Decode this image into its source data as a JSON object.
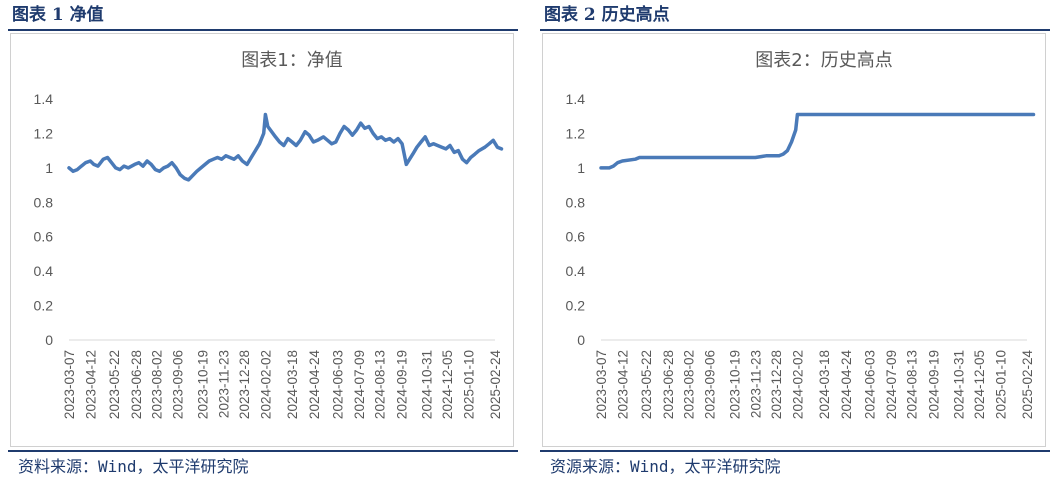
{
  "figures": [
    {
      "heading": "图表 1 净值",
      "source": "资料来源：Wind，太平洋研究院",
      "chart_data": {
        "type": "line",
        "title": "图表1：净值",
        "ylim": [
          0,
          1.4
        ],
        "yticks": [
          "0",
          "0.2",
          "0.4",
          "0.6",
          "0.8",
          "1",
          "1.2",
          "1.4"
        ],
        "xticks": [
          "2023-03-07",
          "2023-04-12",
          "2023-05-22",
          "2023-06-28",
          "2023-08-02",
          "2023-09-06",
          "2023-10-19",
          "2023-11-23",
          "2023-12-28",
          "2024-02-02",
          "2024-03-18",
          "2024-04-24",
          "2024-06-03",
          "2024-07-09",
          "2024-08-13",
          "2024-09-19",
          "2024-10-31",
          "2024-12-05",
          "2025-01-10",
          "2025-02-24"
        ],
        "grid": false,
        "line_color": "#4a7ab8",
        "series": [
          {
            "x": [
              "2023-03-07",
              "2023-03-14",
              "2023-03-21",
              "2023-03-28",
              "2023-04-04",
              "2023-04-12",
              "2023-04-18",
              "2023-04-25",
              "2023-05-04",
              "2023-05-11",
              "2023-05-18",
              "2023-05-25",
              "2023-06-01",
              "2023-06-08",
              "2023-06-15",
              "2023-06-26",
              "2023-07-03",
              "2023-07-10",
              "2023-07-17",
              "2023-07-24",
              "2023-07-31",
              "2023-08-07",
              "2023-08-14",
              "2023-08-21",
              "2023-08-28",
              "2023-09-04",
              "2023-09-11",
              "2023-09-18",
              "2023-09-25",
              "2023-10-09",
              "2023-10-16",
              "2023-10-23",
              "2023-10-30",
              "2023-11-06",
              "2023-11-13",
              "2023-11-20",
              "2023-11-27",
              "2023-12-04",
              "2023-12-11",
              "2023-12-18",
              "2023-12-25",
              "2024-01-02",
              "2024-01-09",
              "2024-01-16",
              "2024-01-23",
              "2024-01-30",
              "2024-02-02",
              "2024-02-06",
              "2024-02-19",
              "2024-02-26",
              "2024-03-04",
              "2024-03-11",
              "2024-03-18",
              "2024-03-25",
              "2024-04-01",
              "2024-04-09",
              "2024-04-16",
              "2024-04-23",
              "2024-04-30",
              "2024-05-10",
              "2024-05-17",
              "2024-05-24",
              "2024-05-31",
              "2024-06-07",
              "2024-06-14",
              "2024-06-21",
              "2024-06-28",
              "2024-07-05",
              "2024-07-12",
              "2024-07-19",
              "2024-07-26",
              "2024-08-02",
              "2024-08-09",
              "2024-08-16",
              "2024-08-23",
              "2024-08-30",
              "2024-09-06",
              "2024-09-13",
              "2024-09-20",
              "2024-09-27",
              "2024-10-08",
              "2024-10-15",
              "2024-10-22",
              "2024-10-29",
              "2024-11-05",
              "2024-11-12",
              "2024-11-19",
              "2024-11-26",
              "2024-12-03",
              "2024-12-10",
              "2024-12-17",
              "2024-12-24",
              "2024-12-31",
              "2025-01-07",
              "2025-01-14",
              "2025-01-21",
              "2025-01-28",
              "2025-02-07",
              "2025-02-14",
              "2025-02-21",
              "2025-02-28",
              "2025-03-07"
            ],
            "values": [
              1.0,
              0.98,
              0.99,
              1.01,
              1.03,
              1.04,
              1.02,
              1.01,
              1.05,
              1.06,
              1.03,
              1.0,
              0.99,
              1.01,
              1.0,
              1.02,
              1.03,
              1.01,
              1.04,
              1.02,
              0.99,
              0.98,
              1.0,
              1.01,
              1.03,
              1.0,
              0.96,
              0.94,
              0.93,
              0.98,
              1.0,
              1.02,
              1.04,
              1.05,
              1.06,
              1.05,
              1.07,
              1.06,
              1.05,
              1.07,
              1.04,
              1.02,
              1.06,
              1.1,
              1.14,
              1.2,
              1.31,
              1.24,
              1.18,
              1.15,
              1.13,
              1.17,
              1.15,
              1.13,
              1.16,
              1.21,
              1.19,
              1.15,
              1.16,
              1.18,
              1.16,
              1.14,
              1.15,
              1.2,
              1.24,
              1.22,
              1.19,
              1.22,
              1.26,
              1.23,
              1.24,
              1.2,
              1.17,
              1.18,
              1.16,
              1.17,
              1.15,
              1.17,
              1.14,
              1.02,
              1.08,
              1.12,
              1.15,
              1.18,
              1.13,
              1.14,
              1.13,
              1.12,
              1.11,
              1.13,
              1.09,
              1.1,
              1.05,
              1.03,
              1.06,
              1.08,
              1.1,
              1.12,
              1.14,
              1.16,
              1.12,
              1.11
            ]
          }
        ]
      }
    },
    {
      "heading": "图表 2 历史高点",
      "source": "资源来源：Wind，太平洋研究院",
      "chart_data": {
        "type": "line",
        "title": "图表2：历史高点",
        "ylim": [
          0,
          1.4
        ],
        "yticks": [
          "0",
          "0.2",
          "0.4",
          "0.6",
          "0.8",
          "1",
          "1.2",
          "1.4"
        ],
        "xticks": [
          "2023-03-07",
          "2023-04-12",
          "2023-05-22",
          "2023-06-28",
          "2023-08-02",
          "2023-09-06",
          "2023-10-19",
          "2023-11-23",
          "2023-12-28",
          "2024-02-02",
          "2024-03-18",
          "2024-04-24",
          "2024-06-03",
          "2024-07-09",
          "2024-08-13",
          "2024-09-19",
          "2024-10-31",
          "2024-12-05",
          "2025-01-10",
          "2025-02-24"
        ],
        "grid": false,
        "line_color": "#4a7ab8",
        "series": [
          {
            "x": [
              "2023-03-07",
              "2023-03-21",
              "2023-03-28",
              "2023-04-04",
              "2023-04-12",
              "2023-05-04",
              "2023-05-11",
              "2023-11-23",
              "2023-12-11",
              "2024-01-02",
              "2024-01-09",
              "2024-01-16",
              "2024-01-23",
              "2024-01-30",
              "2024-02-02",
              "2025-03-07"
            ],
            "values": [
              1.0,
              1.0,
              1.01,
              1.03,
              1.04,
              1.05,
              1.06,
              1.06,
              1.07,
              1.07,
              1.08,
              1.1,
              1.15,
              1.22,
              1.31,
              1.31
            ]
          }
        ]
      }
    }
  ]
}
